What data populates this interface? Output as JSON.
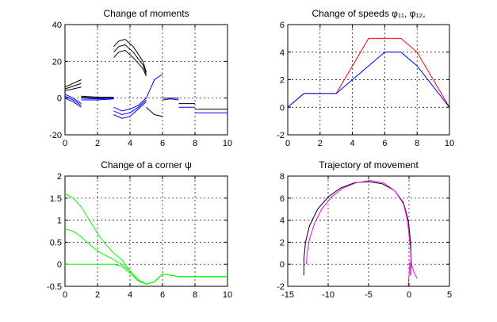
{
  "chart_data": [
    {
      "type": "line",
      "title": "Change of moments",
      "xlim": [
        0,
        10
      ],
      "ylim": [
        -20,
        40
      ],
      "xticks": [
        0,
        2,
        4,
        6,
        8,
        10
      ],
      "yticks": [
        -20,
        0,
        20,
        40
      ],
      "grid": true,
      "series": [
        {
          "color": "#000000",
          "x": [
            0,
            0.5,
            1
          ],
          "y": [
            6,
            8,
            10
          ]
        },
        {
          "color": "#000000",
          "x": [
            0,
            0.5,
            1
          ],
          "y": [
            5,
            6.5,
            8
          ]
        },
        {
          "color": "#000000",
          "x": [
            0,
            0.5,
            1
          ],
          "y": [
            4,
            5,
            6
          ]
        },
        {
          "color": "#0000ff",
          "x": [
            0,
            0.5,
            1
          ],
          "y": [
            2,
            0,
            -3
          ]
        },
        {
          "color": "#0000ff",
          "x": [
            0,
            0.5,
            1
          ],
          "y": [
            1,
            -1,
            -4
          ]
        },
        {
          "color": "#0000ff",
          "x": [
            0,
            0.5,
            1
          ],
          "y": [
            0,
            -2,
            -5
          ]
        },
        {
          "color": "#000000",
          "x": [
            1,
            2,
            3
          ],
          "y": [
            1,
            0.5,
            0.5
          ]
        },
        {
          "color": "#000000",
          "x": [
            1,
            2,
            3
          ],
          "y": [
            0.5,
            0,
            0
          ]
        },
        {
          "color": "#0000ff",
          "x": [
            1,
            2,
            3
          ],
          "y": [
            0,
            -0.5,
            0
          ]
        },
        {
          "color": "#0000ff",
          "x": [
            1,
            2,
            3
          ],
          "y": [
            -1,
            -1,
            -0.5
          ]
        },
        {
          "color": "#000000",
          "x": [
            3,
            3.3,
            3.7,
            4.2,
            4.8,
            5.0
          ],
          "y": [
            28,
            31,
            32,
            28,
            20,
            14
          ]
        },
        {
          "color": "#000000",
          "x": [
            3,
            3.3,
            3.7,
            4.2,
            4.8,
            5.0
          ],
          "y": [
            25,
            28,
            29,
            25,
            18,
            13
          ]
        },
        {
          "color": "#000000",
          "x": [
            3,
            3.3,
            3.7,
            4.2,
            4.8,
            5.0
          ],
          "y": [
            22,
            25,
            26,
            22,
            16,
            12
          ]
        },
        {
          "color": "#0000ff",
          "x": [
            3,
            3.5,
            4,
            4.5,
            5
          ],
          "y": [
            -5,
            -7,
            -6,
            -4,
            0
          ]
        },
        {
          "color": "#0000ff",
          "x": [
            3,
            3.5,
            4,
            4.5,
            5
          ],
          "y": [
            -7,
            -9,
            -8,
            -5,
            -1
          ]
        },
        {
          "color": "#0000ff",
          "x": [
            3,
            3.5,
            4,
            4.5,
            5
          ],
          "y": [
            -9,
            -11,
            -10,
            -6,
            -2
          ]
        },
        {
          "color": "#0000ff",
          "x": [
            5,
            5.5,
            6
          ],
          "y": [
            0,
            10,
            13
          ]
        },
        {
          "color": "#000000",
          "x": [
            5,
            5.5,
            6
          ],
          "y": [
            -5,
            -9,
            -10
          ]
        },
        {
          "color": "#000000",
          "x": [
            6,
            6.5,
            7
          ],
          "y": [
            0,
            0,
            0
          ]
        },
        {
          "color": "#0000ff",
          "x": [
            6,
            6.5,
            7
          ],
          "y": [
            -1,
            -0.5,
            -1
          ]
        },
        {
          "color": "#000000",
          "x": [
            7,
            8
          ],
          "y": [
            -3,
            -3
          ]
        },
        {
          "color": "#0000ff",
          "x": [
            7,
            8
          ],
          "y": [
            -5,
            -5
          ]
        },
        {
          "color": "#000000",
          "x": [
            8,
            10
          ],
          "y": [
            -6,
            -6
          ]
        },
        {
          "color": "#0000ff",
          "x": [
            8,
            10
          ],
          "y": [
            -8,
            -8
          ]
        }
      ]
    },
    {
      "type": "line",
      "title": "Change of speeds  φ₁₁, φ₁₂,",
      "xlim": [
        0,
        10
      ],
      "ylim": [
        -2,
        6
      ],
      "xticks": [
        0,
        2,
        4,
        6,
        8,
        10
      ],
      "yticks": [
        -2,
        0,
        2,
        4,
        6
      ],
      "grid": true,
      "series": [
        {
          "color": "#ff0000",
          "x": [
            0,
            1,
            3,
            5,
            7,
            8,
            10
          ],
          "y": [
            0,
            1,
            1,
            5,
            5,
            4,
            0
          ]
        },
        {
          "color": "#0000ff",
          "x": [
            0,
            1,
            3,
            6,
            7,
            8,
            10
          ],
          "y": [
            0,
            1,
            1,
            4,
            4,
            3,
            0
          ]
        }
      ]
    },
    {
      "type": "line",
      "title": "Change of a corner  ψ",
      "xlim": [
        0,
        10
      ],
      "ylim": [
        -0.5,
        2
      ],
      "xticks": [
        0,
        2,
        4,
        6,
        8,
        10
      ],
      "yticks": [
        -0.5,
        0,
        0.5,
        1,
        1.5,
        2
      ],
      "grid": true,
      "series": [
        {
          "color": "#00ff00",
          "x": [
            0,
            0.5,
            1,
            1.5,
            2,
            2.5,
            3,
            3.5,
            4,
            4.5,
            5,
            5.5,
            6,
            7,
            8,
            10
          ],
          "y": [
            1.6,
            1.5,
            1.3,
            1.0,
            0.7,
            0.45,
            0.25,
            0.1,
            -0.15,
            -0.35,
            -0.45,
            -0.4,
            -0.22,
            -0.28,
            -0.28,
            -0.28
          ]
        },
        {
          "color": "#00ff00",
          "x": [
            0,
            0.5,
            1,
            1.5,
            2,
            2.5,
            3,
            3.5,
            4,
            4.5,
            5,
            5.5,
            6,
            7,
            8,
            10
          ],
          "y": [
            0.8,
            0.75,
            0.62,
            0.45,
            0.3,
            0.2,
            0.1,
            0.0,
            -0.15,
            -0.35,
            -0.45,
            -0.4,
            -0.22,
            -0.28,
            -0.28,
            -0.28
          ]
        },
        {
          "color": "#00ff00",
          "x": [
            0,
            1,
            2,
            3,
            3.5,
            4,
            4.5,
            5,
            5.5,
            6,
            7,
            8,
            10
          ],
          "y": [
            0,
            0,
            0,
            0,
            -0.05,
            -0.2,
            -0.38,
            -0.45,
            -0.4,
            -0.22,
            -0.28,
            -0.28,
            -0.28
          ]
        }
      ]
    },
    {
      "type": "line",
      "title": "Trajectory of movement",
      "xlim": [
        -15,
        5
      ],
      "ylim": [
        -2,
        8
      ],
      "xticks": [
        -15,
        -10,
        -5,
        0,
        5
      ],
      "yticks": [
        -2,
        0,
        2,
        4,
        6,
        8
      ],
      "grid": true,
      "series": [
        {
          "color": "#000000",
          "x": [
            -13,
            -13,
            -12.8,
            -12.3,
            -11.3,
            -10,
            -8.5,
            -6.7,
            -5,
            -3.3,
            -1.8,
            -0.7,
            -0.1,
            0.2,
            0.25,
            0.2
          ],
          "y": [
            -1,
            0.5,
            2,
            3.5,
            5,
            6.1,
            6.9,
            7.4,
            7.5,
            7.3,
            6.7,
            5.6,
            4,
            2,
            0,
            -1
          ]
        },
        {
          "color": "#ff00ff",
          "x": [
            -12.7,
            -12.6,
            -12.3,
            -11.7,
            -10.8,
            -9.6,
            -8.2,
            -6.5,
            -4.8,
            -3.2,
            -1.8,
            -0.7,
            -0.2,
            0.1,
            0.3,
            0.6,
            1.0
          ],
          "y": [
            0,
            1,
            2.3,
            3.7,
            5,
            6.1,
            6.9,
            7.4,
            7.6,
            7.4,
            6.7,
            5.5,
            4,
            2,
            0,
            -0.7,
            -1.3
          ]
        },
        {
          "color": "#ff00ff",
          "x": [
            0.1,
            0.0,
            -0.1
          ],
          "y": [
            0.2,
            -1,
            -2
          ]
        }
      ]
    }
  ]
}
